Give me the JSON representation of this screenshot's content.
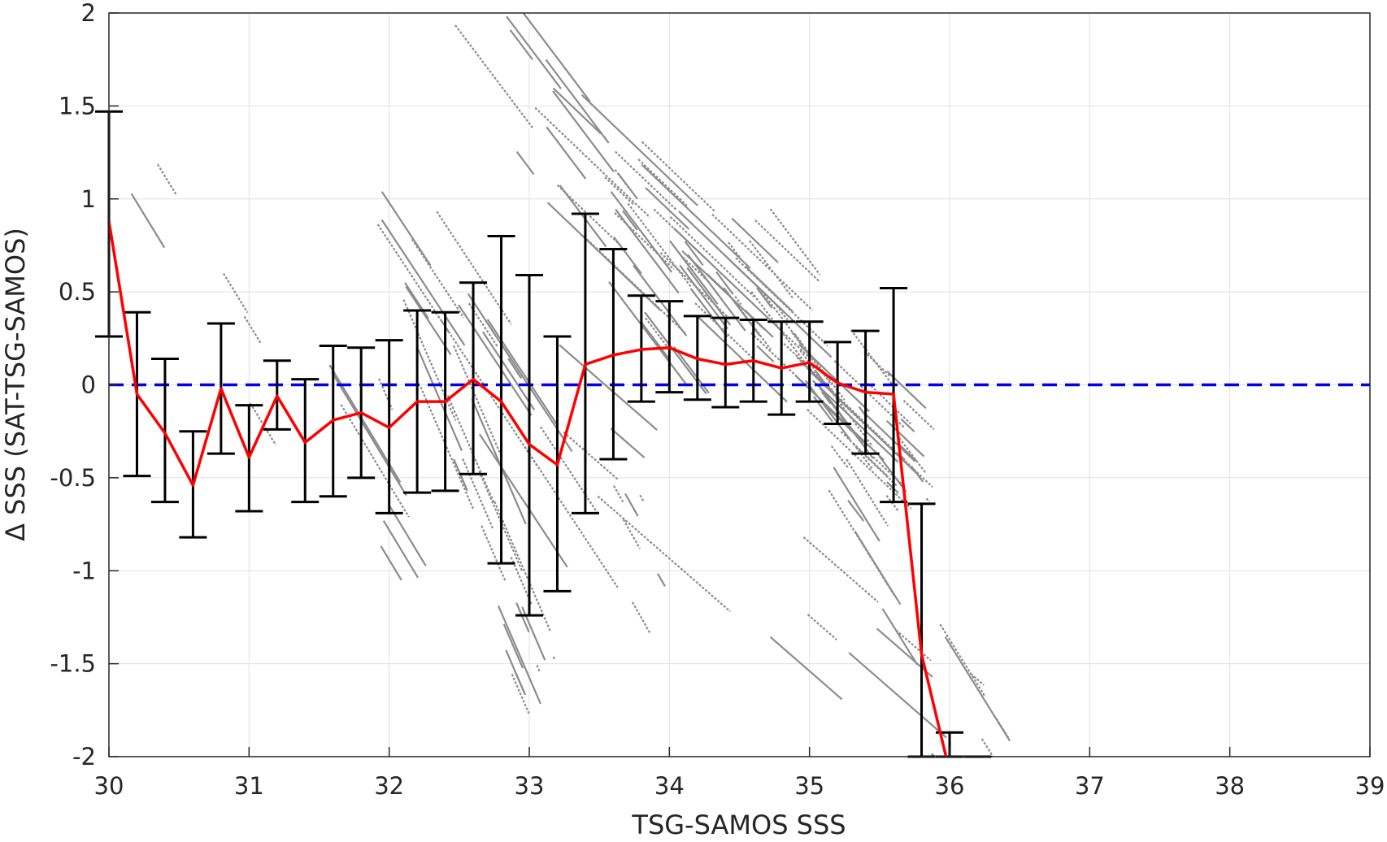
{
  "chart_data": {
    "type": "scatter",
    "title": "",
    "xlabel": "TSG-SAMOS SSS",
    "ylabel": "Δ SSS (SAT-TSG-SAMOS)",
    "xlim": [
      30,
      39
    ],
    "ylim": [
      -2,
      2
    ],
    "x_ticks": [
      30,
      31,
      32,
      33,
      34,
      35,
      36,
      37,
      38,
      39
    ],
    "y_ticks": [
      -2,
      -1.5,
      -1,
      -0.5,
      0,
      0.5,
      1,
      1.5,
      2
    ],
    "x_tick_labels": [
      "30",
      "31",
      "32",
      "33",
      "34",
      "35",
      "36",
      "37",
      "38",
      "39"
    ],
    "y_tick_labels": [
      "-2",
      "-1.5",
      "-1",
      "-0.5",
      "0",
      "0.5",
      "1",
      "1.5",
      "2"
    ],
    "grid": true,
    "colors": {
      "scatter": "#8c8c8c",
      "mean_line": "#ff0000",
      "error_bars": "#000000",
      "zero_line": "#0000ee",
      "axes": "#262626",
      "grid": "#e0e0e0"
    },
    "zero_reference": {
      "y": 0,
      "style": "dashed"
    },
    "scatter_bands": [
      {
        "x_start": 29.9,
        "y_start": 1.3,
        "x_end": 31.2,
        "y_end": -0.3,
        "count": 5
      },
      {
        "x_start": 30.8,
        "y_start": 0.9,
        "x_end": 32.4,
        "y_end": -1.1,
        "count": 6
      },
      {
        "x_start": 31.5,
        "y_start": 1.5,
        "x_end": 33.6,
        "y_end": -0.9,
        "count": 18
      },
      {
        "x_start": 32.0,
        "y_start": 0.5,
        "x_end": 33.2,
        "y_end": -1.6,
        "count": 22
      },
      {
        "x_start": 32.6,
        "y_start": 2.0,
        "x_end": 34.4,
        "y_end": 0.2,
        "count": 30
      },
      {
        "x_start": 33.2,
        "y_start": 1.4,
        "x_end": 35.7,
        "y_end": -0.4,
        "count": 60
      },
      {
        "x_start": 34.3,
        "y_start": 0.9,
        "x_end": 35.6,
        "y_end": -0.4,
        "count": 30
      },
      {
        "x_start": 33.0,
        "y_start": 0.2,
        "x_end": 36.2,
        "y_end": -1.9,
        "count": 12
      },
      {
        "x_start": 35.0,
        "y_start": -0.3,
        "x_end": 36.4,
        "y_end": -2.0,
        "count": 10
      },
      {
        "x_start": 33.4,
        "y_start": -0.4,
        "x_end": 34.0,
        "y_end": -1.2,
        "count": 6
      }
    ],
    "series": [
      {
        "type": "line",
        "x": [
          30.0,
          30.2,
          30.4,
          30.6,
          30.8,
          31.0,
          31.2,
          31.4,
          31.6,
          31.8,
          32.0,
          32.2,
          32.4,
          32.6,
          32.8,
          33.0,
          33.2,
          33.4,
          33.6,
          33.8,
          34.0,
          34.2,
          34.4,
          34.6,
          34.8,
          35.0,
          35.2,
          35.4,
          35.6,
          35.8,
          36.0
        ],
        "values": [
          0.88,
          -0.05,
          -0.26,
          -0.54,
          -0.02,
          -0.39,
          -0.06,
          -0.31,
          -0.19,
          -0.15,
          -0.23,
          -0.09,
          -0.09,
          0.03,
          -0.09,
          -0.32,
          -0.43,
          0.11,
          0.16,
          0.19,
          0.2,
          0.14,
          0.11,
          0.13,
          0.09,
          0.12,
          0.01,
          -0.04,
          -0.05,
          -1.45,
          -2.08
        ]
      },
      {
        "type": "errorbar",
        "x": [
          30.0,
          30.2,
          30.4,
          30.6,
          30.8,
          31.0,
          31.2,
          31.4,
          31.6,
          31.8,
          32.0,
          32.2,
          32.4,
          32.6,
          32.8,
          33.0,
          33.2,
          33.4,
          33.6,
          33.8,
          34.0,
          34.2,
          34.4,
          34.6,
          34.8,
          35.0,
          35.2,
          35.4,
          35.6,
          35.8,
          36.0,
          36.2
        ],
        "upper": [
          1.47,
          0.39,
          0.14,
          -0.25,
          0.33,
          -0.11,
          0.13,
          0.03,
          0.21,
          0.2,
          0.24,
          0.4,
          0.39,
          0.55,
          0.8,
          0.59,
          0.26,
          0.92,
          0.73,
          0.48,
          0.45,
          0.37,
          0.36,
          0.35,
          0.34,
          0.34,
          0.23,
          0.29,
          0.52,
          -0.64,
          -1.87,
          -2.0
        ],
        "lower": [
          0.26,
          -0.49,
          -0.63,
          -0.82,
          -0.37,
          -0.68,
          -0.24,
          -0.63,
          -0.6,
          -0.5,
          -0.69,
          -0.58,
          -0.57,
          -0.48,
          -0.96,
          -1.24,
          -1.11,
          -0.69,
          -0.4,
          -0.09,
          -0.04,
          -0.08,
          -0.12,
          -0.09,
          -0.16,
          -0.09,
          -0.21,
          -0.37,
          -0.63,
          -2.0,
          -2.0,
          -2.0
        ]
      }
    ]
  }
}
